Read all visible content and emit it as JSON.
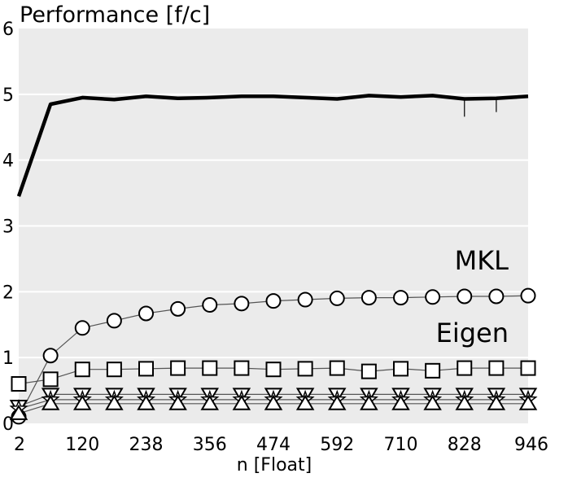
{
  "chart_data": {
    "type": "line",
    "title": "Performance [f/c]",
    "xlabel": "n [Float]",
    "ylabel": "",
    "xlim": [
      2,
      946
    ],
    "ylim": [
      0,
      6
    ],
    "x_ticks": [
      2,
      120,
      238,
      356,
      474,
      592,
      710,
      828,
      946
    ],
    "y_ticks": [
      0,
      1,
      2,
      3,
      4,
      5,
      6
    ],
    "grid": "horizontal",
    "background": "#ebebeb",
    "annotations": [
      "MKL",
      "Eigen"
    ],
    "x": [
      2,
      61,
      120,
      179,
      238,
      297,
      356,
      415,
      474,
      533,
      592,
      651,
      710,
      769,
      828,
      887,
      946
    ],
    "series": [
      {
        "name": "",
        "marker": "none",
        "style": "thick",
        "color": "#000000",
        "values": [
          3.45,
          4.85,
          4.95,
          4.92,
          4.97,
          4.94,
          4.95,
          4.97,
          4.97,
          4.95,
          4.93,
          4.98,
          4.96,
          4.98,
          4.93,
          4.94,
          4.97
        ]
      },
      {
        "name": "",
        "marker": "circle",
        "style": "thin",
        "color": "#555555",
        "values": [
          0.1,
          1.03,
          1.45,
          1.56,
          1.67,
          1.74,
          1.8,
          1.82,
          1.86,
          1.88,
          1.9,
          1.91,
          1.91,
          1.92,
          1.93,
          1.93,
          1.94
        ]
      },
      {
        "name": "",
        "marker": "square",
        "style": "thin",
        "color": "#555555",
        "values": [
          0.6,
          0.67,
          0.82,
          0.82,
          0.83,
          0.84,
          0.84,
          0.84,
          0.82,
          0.83,
          0.84,
          0.79,
          0.83,
          0.8,
          0.84,
          0.84,
          0.84
        ]
      },
      {
        "name": "",
        "marker": "triangle-down",
        "style": "thin",
        "color": "#555555",
        "values": [
          0.26,
          0.44,
          0.44,
          0.44,
          0.44,
          0.44,
          0.44,
          0.44,
          0.44,
          0.44,
          0.44,
          0.44,
          0.44,
          0.44,
          0.44,
          0.44,
          0.44
        ]
      },
      {
        "name": "",
        "marker": "star",
        "style": "thin",
        "color": "#555555",
        "values": [
          0.22,
          0.36,
          0.36,
          0.36,
          0.36,
          0.36,
          0.36,
          0.36,
          0.36,
          0.36,
          0.36,
          0.36,
          0.36,
          0.36,
          0.36,
          0.36,
          0.36
        ]
      },
      {
        "name": "",
        "marker": "triangle-up",
        "style": "thin",
        "color": "#555555",
        "values": [
          0.15,
          0.3,
          0.3,
          0.3,
          0.3,
          0.3,
          0.3,
          0.3,
          0.3,
          0.3,
          0.3,
          0.3,
          0.3,
          0.3,
          0.3,
          0.3,
          0.3
        ]
      }
    ],
    "error_bars": {
      "series": 0,
      "x": [
        828,
        887
      ],
      "low": [
        4.66,
        4.73
      ],
      "high": [
        4.93,
        4.94
      ]
    }
  }
}
